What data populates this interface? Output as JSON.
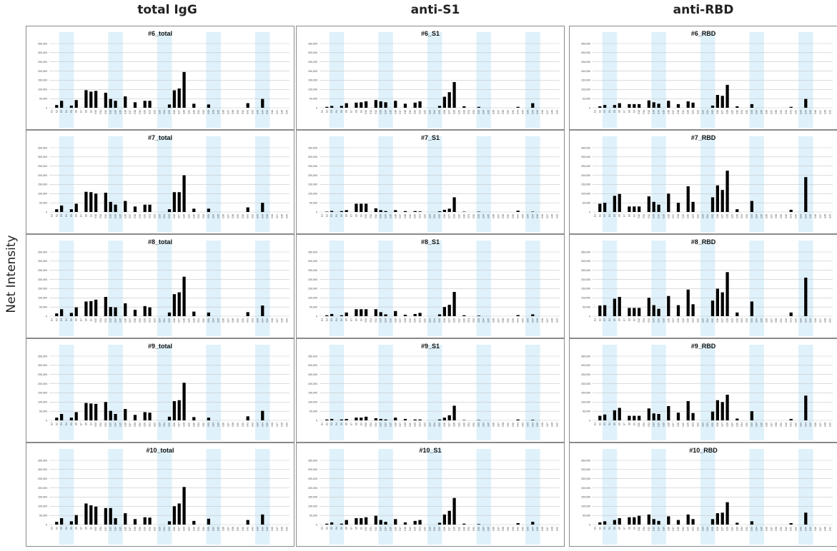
{
  "y_axis_label": "Net Intensity",
  "columns": [
    "total IgG",
    "anti-S1",
    "anti-RBD"
  ],
  "colors": {
    "band": "#dff1fa",
    "bar": "#000000",
    "grid": "#c8c8c8",
    "border": "#8a8a8a"
  },
  "chart_data": {
    "type": "bar",
    "layout": "small multiples, 5 rows x 3 columns",
    "ylim": [
      0,
      350000
    ],
    "yticks": [
      "350,000",
      "300,000",
      "250,000",
      "200,000",
      "150,000",
      "100,000",
      "50,000",
      "0"
    ],
    "grid": true,
    "shaded_category_bands": [
      [
        2,
        5
      ],
      [
        12,
        15
      ],
      [
        22,
        25
      ],
      [
        32,
        35
      ],
      [
        42,
        45
      ]
    ],
    "categories": [
      "E1",
      "E2",
      "E3",
      "E4",
      "E5",
      "E6",
      "E7",
      "E8",
      "E9",
      "E10",
      "E11",
      "E12",
      "E13",
      "E14",
      "E15",
      "E16",
      "E17",
      "E18",
      "E19",
      "E20",
      "E21",
      "E22",
      "E23",
      "E24",
      "E25",
      "E26",
      "E27",
      "E28",
      "E29",
      "E30",
      "E31",
      "E32",
      "E33",
      "E34",
      "E35",
      "E36",
      "E37",
      "E38",
      "E39",
      "E40",
      "E41",
      "E42",
      "E43",
      "E44",
      "E45",
      "E46",
      "E47",
      "E48",
      "E49"
    ],
    "panels": [
      {
        "title": "#6_total",
        "values": [
          0,
          15000,
          38000,
          0,
          12000,
          42000,
          0,
          96000,
          88000,
          92000,
          0,
          82000,
          48000,
          38000,
          0,
          62000,
          0,
          30000,
          0,
          38000,
          38000,
          0,
          0,
          0,
          18000,
          95000,
          105000,
          195000,
          0,
          22000,
          0,
          0,
          18000,
          0,
          0,
          0,
          0,
          0,
          0,
          0,
          25000,
          0,
          0,
          48000,
          0,
          0,
          0,
          0,
          0
        ]
      },
      {
        "title": "#7_total",
        "values": [
          0,
          15000,
          35000,
          0,
          15000,
          45000,
          0,
          110000,
          108000,
          100000,
          0,
          105000,
          55000,
          40000,
          0,
          60000,
          0,
          30000,
          0,
          40000,
          40000,
          0,
          0,
          0,
          15000,
          108000,
          108000,
          200000,
          0,
          18000,
          0,
          0,
          18000,
          0,
          0,
          0,
          0,
          0,
          0,
          0,
          25000,
          0,
          0,
          50000,
          0,
          0,
          0,
          0,
          0
        ]
      },
      {
        "title": "#8_total",
        "values": [
          0,
          15000,
          38000,
          0,
          18000,
          48000,
          0,
          80000,
          82000,
          90000,
          0,
          105000,
          50000,
          48000,
          0,
          70000,
          0,
          35000,
          0,
          55000,
          48000,
          0,
          0,
          0,
          20000,
          120000,
          130000,
          215000,
          0,
          25000,
          0,
          0,
          20000,
          0,
          0,
          0,
          0,
          0,
          0,
          0,
          22000,
          0,
          0,
          58000,
          0,
          0,
          0,
          0,
          0
        ]
      },
      {
        "title": "#9_total",
        "values": [
          0,
          15000,
          35000,
          0,
          15000,
          45000,
          0,
          95000,
          92000,
          90000,
          0,
          100000,
          52000,
          35000,
          0,
          62000,
          0,
          30000,
          0,
          45000,
          42000,
          0,
          0,
          0,
          20000,
          105000,
          110000,
          205000,
          0,
          18000,
          0,
          0,
          15000,
          0,
          0,
          0,
          0,
          0,
          0,
          0,
          22000,
          0,
          0,
          52000,
          0,
          0,
          0,
          0,
          0
        ]
      },
      {
        "title": "#10_total",
        "values": [
          0,
          15000,
          35000,
          0,
          18000,
          52000,
          0,
          115000,
          105000,
          98000,
          0,
          90000,
          90000,
          35000,
          0,
          62000,
          0,
          30000,
          0,
          40000,
          38000,
          0,
          0,
          0,
          18000,
          100000,
          115000,
          205000,
          0,
          20000,
          0,
          0,
          32000,
          0,
          0,
          0,
          0,
          0,
          0,
          0,
          25000,
          0,
          0,
          55000,
          0,
          0,
          0,
          0,
          0
        ]
      },
      {
        "title": "#6_S1",
        "values": [
          0,
          5000,
          10000,
          0,
          10000,
          25000,
          0,
          28000,
          30000,
          35000,
          0,
          42000,
          35000,
          30000,
          0,
          38000,
          0,
          22000,
          0,
          28000,
          35000,
          0,
          0,
          0,
          10000,
          60000,
          85000,
          140000,
          0,
          8000,
          0,
          0,
          5000,
          0,
          0,
          0,
          0,
          0,
          0,
          0,
          5000,
          0,
          0,
          25000,
          0,
          0,
          0,
          0,
          0
        ]
      },
      {
        "title": "#7_S1",
        "values": [
          0,
          2000,
          6000,
          0,
          5000,
          10000,
          0,
          45000,
          45000,
          45000,
          0,
          20000,
          10000,
          5000,
          0,
          10000,
          0,
          5000,
          0,
          5000,
          3000,
          0,
          0,
          0,
          4000,
          12000,
          18000,
          80000,
          0,
          2000,
          0,
          0,
          2000,
          0,
          0,
          0,
          0,
          0,
          0,
          0,
          7000,
          0,
          0,
          2000,
          0,
          0,
          0,
          0,
          0
        ]
      },
      {
        "title": "#8_S1",
        "values": [
          0,
          5000,
          12000,
          0,
          5000,
          20000,
          0,
          38000,
          38000,
          38000,
          0,
          38000,
          22000,
          10000,
          0,
          28000,
          0,
          8000,
          0,
          12000,
          18000,
          0,
          0,
          0,
          10000,
          50000,
          62000,
          132000,
          0,
          5000,
          0,
          0,
          3000,
          0,
          0,
          0,
          0,
          0,
          0,
          0,
          6000,
          0,
          0,
          10000,
          0,
          0,
          0,
          0,
          0
        ]
      },
      {
        "title": "#9_S1",
        "values": [
          0,
          5000,
          8000,
          0,
          5000,
          8000,
          0,
          15000,
          15000,
          20000,
          0,
          12000,
          8000,
          5000,
          0,
          15000,
          0,
          8000,
          0,
          5000,
          5000,
          0,
          0,
          0,
          5000,
          15000,
          28000,
          80000,
          0,
          2000,
          0,
          0,
          2000,
          0,
          0,
          0,
          0,
          0,
          0,
          0,
          5000,
          0,
          0,
          3000,
          0,
          0,
          0,
          0,
          0
        ]
      },
      {
        "title": "#10_S1",
        "values": [
          0,
          5000,
          12000,
          0,
          5000,
          25000,
          0,
          35000,
          35000,
          40000,
          0,
          48000,
          25000,
          15000,
          0,
          30000,
          0,
          12000,
          0,
          20000,
          25000,
          0,
          0,
          0,
          10000,
          55000,
          75000,
          145000,
          0,
          5000,
          0,
          0,
          3000,
          0,
          0,
          0,
          0,
          0,
          0,
          0,
          8000,
          0,
          0,
          15000,
          0,
          0,
          0,
          0,
          0
        ]
      },
      {
        "title": "#6_RBD",
        "values": [
          0,
          8000,
          15000,
          0,
          15000,
          25000,
          0,
          20000,
          20000,
          20000,
          0,
          40000,
          30000,
          22000,
          0,
          38000,
          0,
          20000,
          0,
          35000,
          28000,
          0,
          0,
          0,
          12000,
          70000,
          65000,
          125000,
          0,
          8000,
          0,
          0,
          20000,
          0,
          0,
          0,
          0,
          0,
          0,
          0,
          5000,
          0,
          0,
          48000,
          0,
          0,
          0,
          0,
          0
        ]
      },
      {
        "title": "#7_RBD",
        "values": [
          0,
          45000,
          50000,
          0,
          88000,
          98000,
          0,
          30000,
          30000,
          30000,
          0,
          85000,
          55000,
          40000,
          0,
          100000,
          0,
          50000,
          0,
          140000,
          55000,
          0,
          0,
          0,
          80000,
          145000,
          120000,
          225000,
          0,
          15000,
          0,
          0,
          60000,
          0,
          0,
          0,
          0,
          0,
          0,
          0,
          12000,
          0,
          0,
          190000,
          0,
          0,
          0,
          0,
          0
        ]
      },
      {
        "title": "#8_RBD",
        "values": [
          0,
          58000,
          60000,
          0,
          95000,
          105000,
          0,
          45000,
          45000,
          45000,
          0,
          100000,
          60000,
          40000,
          0,
          110000,
          0,
          60000,
          0,
          145000,
          65000,
          0,
          0,
          0,
          85000,
          150000,
          130000,
          240000,
          0,
          20000,
          0,
          0,
          80000,
          0,
          0,
          0,
          0,
          0,
          0,
          0,
          20000,
          0,
          0,
          210000,
          0,
          0,
          0,
          0,
          0
        ]
      },
      {
        "title": "#9_RBD",
        "values": [
          0,
          25000,
          32000,
          0,
          55000,
          68000,
          0,
          25000,
          25000,
          25000,
          0,
          65000,
          38000,
          35000,
          0,
          78000,
          0,
          42000,
          0,
          105000,
          40000,
          0,
          0,
          0,
          48000,
          110000,
          100000,
          140000,
          0,
          10000,
          0,
          0,
          50000,
          0,
          0,
          0,
          0,
          0,
          0,
          0,
          8000,
          0,
          0,
          135000,
          0,
          0,
          0,
          0,
          0
        ]
      },
      {
        "title": "#10_RBD",
        "values": [
          0,
          12000,
          18000,
          0,
          25000,
          35000,
          0,
          40000,
          40000,
          48000,
          0,
          55000,
          30000,
          20000,
          0,
          45000,
          0,
          25000,
          0,
          55000,
          30000,
          0,
          0,
          0,
          30000,
          62000,
          65000,
          122000,
          0,
          10000,
          0,
          0,
          18000,
          0,
          0,
          0,
          0,
          0,
          0,
          0,
          8000,
          0,
          0,
          65000,
          0,
          0,
          0,
          0,
          0
        ]
      }
    ]
  }
}
